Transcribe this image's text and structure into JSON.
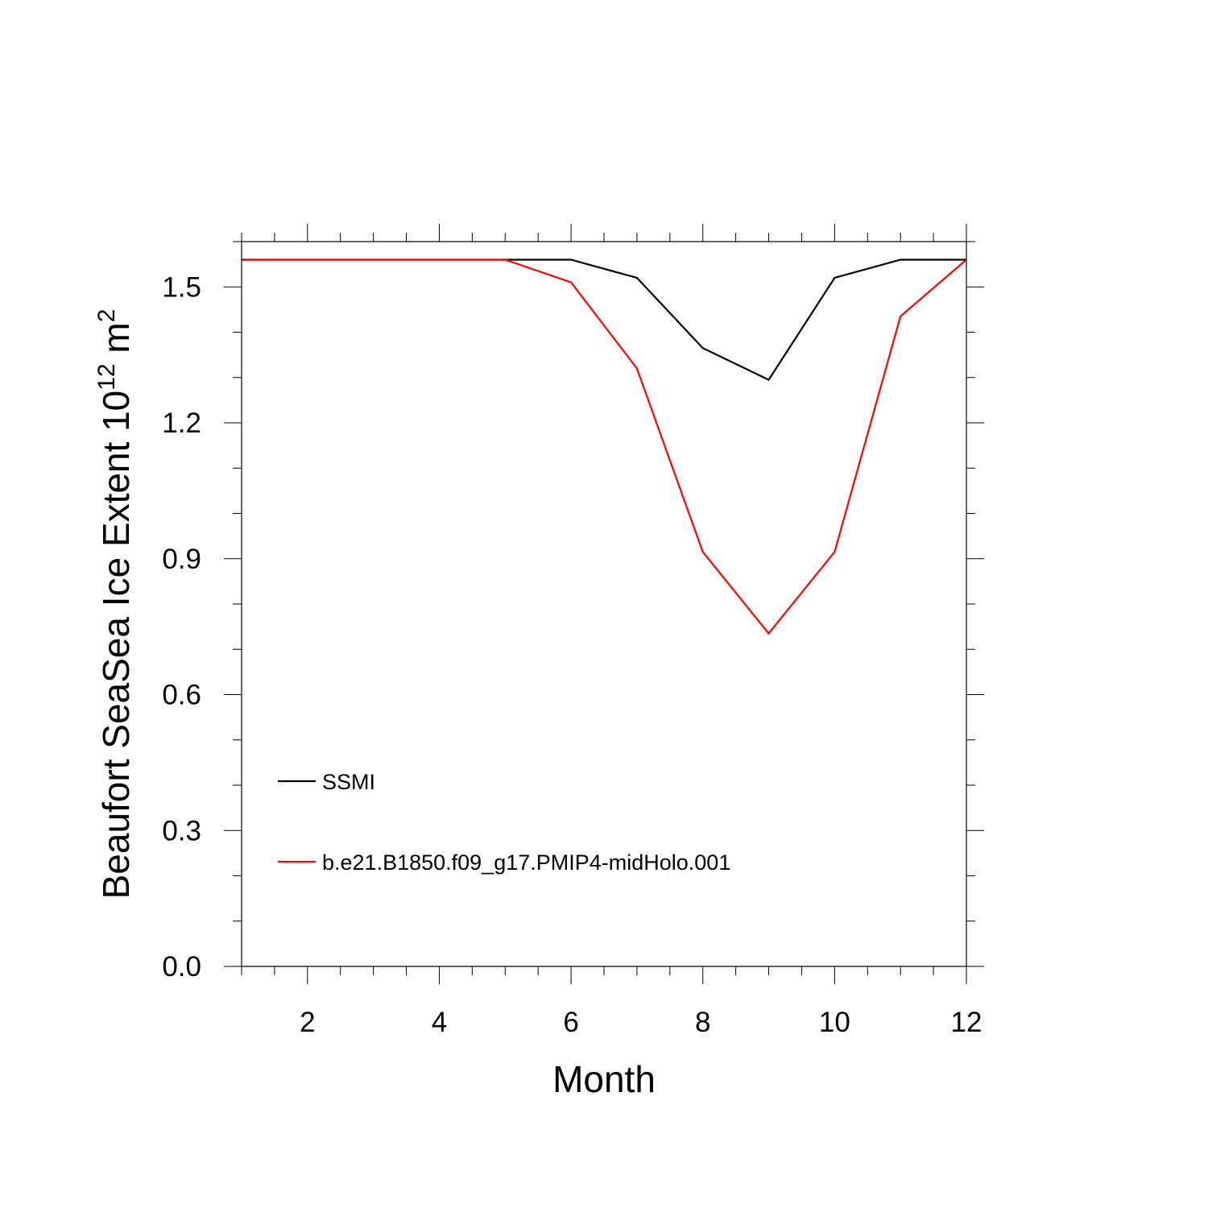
{
  "chart_data": {
    "type": "line",
    "xlabel": "Month",
    "ylabel": {
      "text": "Beaufort SeaSea Ice Extent 10",
      "sup1": "12",
      "unit": " m",
      "sup2": "2"
    },
    "xlim": [
      1,
      12
    ],
    "ylim": [
      0,
      1.6
    ],
    "x_ticks": [
      2,
      4,
      6,
      8,
      10,
      12
    ],
    "x_tick_labels": [
      "2",
      "4",
      "6",
      "8",
      "10",
      "12"
    ],
    "y_ticks": [
      0.0,
      0.3,
      0.6,
      0.9,
      1.2,
      1.5
    ],
    "y_tick_labels": [
      "0.0",
      "0.3",
      "0.6",
      "0.9",
      "1.2",
      "1.5"
    ],
    "grid": false,
    "legend_position": "lower-left",
    "x": [
      1,
      2,
      3,
      4,
      5,
      6,
      7,
      8,
      9,
      10,
      11,
      12
    ],
    "series": [
      {
        "name": "SSMI",
        "color": "#000000",
        "values": [
          1.56,
          1.56,
          1.56,
          1.56,
          1.56,
          1.56,
          1.52,
          1.365,
          1.295,
          1.52,
          1.56,
          1.56
        ]
      },
      {
        "name": "b.e21.B1850.f09_g17.PMIP4-midHolo.001",
        "color": "#ff0000",
        "values": [
          1.56,
          1.56,
          1.56,
          1.56,
          1.56,
          1.51,
          1.32,
          0.915,
          0.735,
          0.915,
          1.435,
          1.56
        ]
      }
    ]
  }
}
